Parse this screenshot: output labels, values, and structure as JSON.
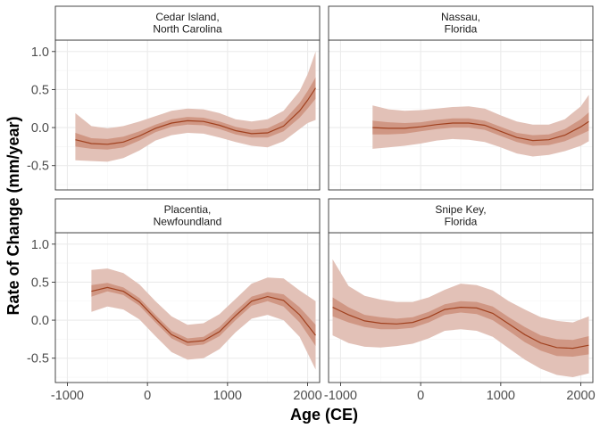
{
  "chart_data": {
    "type": "line",
    "xlabel": "Age (CE)",
    "ylabel": "Rate of Change (mm/year)",
    "xlim": [
      -1150,
      2150
    ],
    "ylim": [
      -0.82,
      1.15
    ],
    "x_ticks": [
      -1000,
      0,
      1000,
      2000
    ],
    "x_tick_labels": [
      "-1000",
      "0",
      "1000",
      "2000"
    ],
    "y_ticks": [
      -0.5,
      0.0,
      0.5,
      1.0
    ],
    "y_tick_labels": [
      "-0.5",
      "0.0",
      "0.5",
      "1.0"
    ],
    "grid": true,
    "facets": [
      {
        "strip": [
          "Cedar Island,",
          "North Carolina"
        ],
        "x": [
          -900,
          -700,
          -500,
          -300,
          -100,
          100,
          300,
          500,
          700,
          900,
          1100,
          1300,
          1500,
          1700,
          1900,
          2000,
          2100
        ],
        "mean": [
          -0.16,
          -0.21,
          -0.22,
          -0.19,
          -0.11,
          -0.01,
          0.06,
          0.09,
          0.08,
          0.03,
          -0.04,
          -0.08,
          -0.07,
          0.02,
          0.22,
          0.36,
          0.52
        ],
        "band_inner": [
          [
            -0.25,
            -0.07
          ],
          [
            -0.28,
            -0.14
          ],
          [
            -0.29,
            -0.15
          ],
          [
            -0.26,
            -0.12
          ],
          [
            -0.17,
            -0.05
          ],
          [
            -0.06,
            0.04
          ],
          [
            0.01,
            0.11
          ],
          [
            0.04,
            0.14
          ],
          [
            0.03,
            0.13
          ],
          [
            -0.02,
            0.08
          ],
          [
            -0.09,
            0.01
          ],
          [
            -0.13,
            -0.03
          ],
          [
            -0.13,
            -0.01
          ],
          [
            -0.05,
            0.09
          ],
          [
            0.13,
            0.32
          ],
          [
            0.25,
            0.48
          ],
          [
            0.38,
            0.66
          ]
        ],
        "band_outer": [
          [
            -0.43,
            0.19
          ],
          [
            -0.44,
            0.02
          ],
          [
            -0.45,
            -0.01
          ],
          [
            -0.4,
            0.02
          ],
          [
            -0.3,
            0.08
          ],
          [
            -0.17,
            0.15
          ],
          [
            -0.1,
            0.22
          ],
          [
            -0.07,
            0.25
          ],
          [
            -0.08,
            0.24
          ],
          [
            -0.13,
            0.19
          ],
          [
            -0.19,
            0.11
          ],
          [
            -0.24,
            0.08
          ],
          [
            -0.26,
            0.11
          ],
          [
            -0.18,
            0.22
          ],
          [
            -0.02,
            0.48
          ],
          [
            0.06,
            0.7
          ],
          [
            0.1,
            1.0
          ]
        ]
      },
      {
        "strip": [
          "Nassau,",
          "Florida"
        ],
        "x": [
          -600,
          -400,
          -200,
          0,
          200,
          400,
          600,
          800,
          1000,
          1200,
          1400,
          1600,
          1800,
          2000,
          2100
        ],
        "mean": [
          0.0,
          -0.01,
          -0.01,
          0.01,
          0.04,
          0.06,
          0.06,
          0.03,
          -0.05,
          -0.13,
          -0.17,
          -0.16,
          -0.1,
          0.01,
          0.08
        ],
        "band_inner": [
          [
            -0.09,
            0.09
          ],
          [
            -0.09,
            0.07
          ],
          [
            -0.08,
            0.06
          ],
          [
            -0.05,
            0.07
          ],
          [
            -0.02,
            0.1
          ],
          [
            0.0,
            0.12
          ],
          [
            0.0,
            0.12
          ],
          [
            -0.03,
            0.09
          ],
          [
            -0.11,
            0.01
          ],
          [
            -0.19,
            -0.07
          ],
          [
            -0.24,
            -0.1
          ],
          [
            -0.23,
            -0.09
          ],
          [
            -0.18,
            -0.02
          ],
          [
            -0.09,
            0.11
          ],
          [
            -0.04,
            0.2
          ]
        ],
        "band_outer": [
          [
            -0.28,
            0.29
          ],
          [
            -0.26,
            0.24
          ],
          [
            -0.24,
            0.22
          ],
          [
            -0.21,
            0.23
          ],
          [
            -0.17,
            0.25
          ],
          [
            -0.15,
            0.27
          ],
          [
            -0.16,
            0.28
          ],
          [
            -0.19,
            0.25
          ],
          [
            -0.26,
            0.16
          ],
          [
            -0.34,
            0.08
          ],
          [
            -0.38,
            0.04
          ],
          [
            -0.36,
            0.04
          ],
          [
            -0.31,
            0.11
          ],
          [
            -0.24,
            0.28
          ],
          [
            -0.18,
            0.43
          ]
        ]
      },
      {
        "strip": [
          "Placentia,",
          "Newfoundland"
        ],
        "x": [
          -700,
          -500,
          -300,
          -100,
          100,
          300,
          500,
          700,
          900,
          1100,
          1300,
          1500,
          1700,
          1900,
          2100
        ],
        "mean": [
          0.38,
          0.43,
          0.38,
          0.24,
          0.02,
          -0.19,
          -0.29,
          -0.27,
          -0.15,
          0.06,
          0.25,
          0.31,
          0.26,
          0.07,
          -0.2
        ],
        "band_inner": [
          [
            0.31,
            0.46
          ],
          [
            0.38,
            0.49
          ],
          [
            0.33,
            0.43
          ],
          [
            0.19,
            0.29
          ],
          [
            -0.03,
            0.07
          ],
          [
            -0.24,
            -0.14
          ],
          [
            -0.34,
            -0.24
          ],
          [
            -0.32,
            -0.22
          ],
          [
            -0.21,
            -0.09
          ],
          [
            0.0,
            0.12
          ],
          [
            0.19,
            0.31
          ],
          [
            0.25,
            0.37
          ],
          [
            0.18,
            0.34
          ],
          [
            -0.03,
            0.17
          ],
          [
            -0.34,
            -0.06
          ]
        ],
        "band_outer": [
          [
            0.11,
            0.66
          ],
          [
            0.18,
            0.68
          ],
          [
            0.14,
            0.62
          ],
          [
            0.01,
            0.47
          ],
          [
            -0.21,
            0.25
          ],
          [
            -0.42,
            0.05
          ],
          [
            -0.52,
            -0.06
          ],
          [
            -0.5,
            -0.04
          ],
          [
            -0.38,
            0.08
          ],
          [
            -0.16,
            0.28
          ],
          [
            0.02,
            0.48
          ],
          [
            0.07,
            0.56
          ],
          [
            0.0,
            0.55
          ],
          [
            -0.22,
            0.39
          ],
          [
            -0.65,
            0.25
          ]
        ]
      },
      {
        "strip": [
          "Snipe Key,",
          "Florida"
        ],
        "x": [
          -1100,
          -900,
          -700,
          -500,
          -300,
          -100,
          100,
          300,
          500,
          700,
          900,
          1100,
          1300,
          1500,
          1700,
          1900,
          2100
        ],
        "mean": [
          0.17,
          0.07,
          -0.01,
          -0.04,
          -0.05,
          -0.03,
          0.04,
          0.14,
          0.17,
          0.16,
          0.09,
          -0.05,
          -0.19,
          -0.3,
          -0.36,
          -0.37,
          -0.33
        ],
        "band_inner": [
          [
            0.05,
            0.3
          ],
          [
            -0.03,
            0.17
          ],
          [
            -0.09,
            0.07
          ],
          [
            -0.12,
            0.04
          ],
          [
            -0.12,
            0.02
          ],
          [
            -0.1,
            0.04
          ],
          [
            -0.03,
            0.11
          ],
          [
            0.07,
            0.21
          ],
          [
            0.1,
            0.25
          ],
          [
            0.08,
            0.24
          ],
          [
            0.0,
            0.18
          ],
          [
            -0.14,
            0.04
          ],
          [
            -0.29,
            -0.09
          ],
          [
            -0.4,
            -0.2
          ],
          [
            -0.47,
            -0.25
          ],
          [
            -0.48,
            -0.26
          ],
          [
            -0.45,
            -0.21
          ]
        ],
        "band_outer": [
          [
            -0.2,
            0.8
          ],
          [
            -0.3,
            0.45
          ],
          [
            -0.35,
            0.32
          ],
          [
            -0.36,
            0.27
          ],
          [
            -0.34,
            0.24
          ],
          [
            -0.31,
            0.24
          ],
          [
            -0.24,
            0.3
          ],
          [
            -0.14,
            0.4
          ],
          [
            -0.12,
            0.48
          ],
          [
            -0.14,
            0.46
          ],
          [
            -0.22,
            0.39
          ],
          [
            -0.37,
            0.25
          ],
          [
            -0.52,
            0.14
          ],
          [
            -0.64,
            0.04
          ],
          [
            -0.72,
            -0.01
          ],
          [
            -0.75,
            -0.03
          ],
          [
            -0.7,
            0.05
          ]
        ]
      }
    ]
  },
  "colors": {
    "band_outer": "#e2c1b7",
    "band_inner": "#cc8f7b",
    "line": "#a0411f",
    "grid_major": "#ebebeb",
    "grid_minor": "#f5f5f5",
    "panel_border": "#333333",
    "strip_fill": "#ffffff"
  }
}
